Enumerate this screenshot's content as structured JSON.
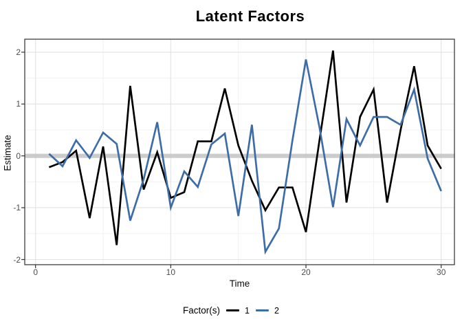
{
  "title": "Latent Factors",
  "axes": {
    "x_label": "Time",
    "y_label": "Estimate",
    "x_ticks": [
      {
        "label": "0",
        "value": 0
      },
      {
        "label": "10",
        "value": 10
      },
      {
        "label": "20",
        "value": 20
      },
      {
        "label": "30",
        "value": 30
      }
    ],
    "y_ticks": [
      {
        "label": "2",
        "value": 2
      },
      {
        "label": "1",
        "value": 1
      },
      {
        "label": "0",
        "value": 0
      },
      {
        "label": "-1",
        "value": -1
      },
      {
        "label": "-2",
        "value": -2
      }
    ],
    "x_minor": [
      5,
      15,
      25
    ],
    "y_minor": [
      1.5,
      0.5,
      -0.5,
      -1.5
    ]
  },
  "legend": {
    "title": "Factor(s)",
    "entries": [
      {
        "label": "1",
        "color": "#000000"
      },
      {
        "label": "2",
        "color": "#3D6DA6"
      }
    ]
  },
  "colors": {
    "series1": "#000000",
    "series2": "#3D6DA6",
    "zero_band": "#c4c4c4",
    "grid_major": "#e2e2e2",
    "grid_minor": "#f0f0f0",
    "panel_border": "#2d2d2d",
    "tick_mark": "#333333"
  },
  "chart_data": {
    "type": "line",
    "title": "Latent Factors",
    "xlabel": "Time",
    "ylabel": "Estimate",
    "xlim": [
      -0.8,
      31
    ],
    "ylim": [
      -2.1,
      2.25
    ],
    "grid": true,
    "legend_position": "bottom",
    "annotations": [
      {
        "type": "hline_band",
        "y": 0,
        "color": "#c4c4c4",
        "note": "thick gray horizontal reference band at y=0"
      }
    ],
    "x": [
      1,
      2,
      3,
      4,
      5,
      6,
      7,
      8,
      9,
      10,
      11,
      12,
      13,
      14,
      15,
      16,
      17,
      18,
      19,
      20,
      21,
      22,
      23,
      24,
      25,
      26,
      27,
      28,
      29,
      30
    ],
    "series": [
      {
        "name": "1",
        "color": "#000000",
        "values": [
          -0.22,
          -0.12,
          0.1,
          -1.2,
          0.18,
          -1.72,
          1.35,
          -0.65,
          0.07,
          -0.81,
          -0.7,
          0.28,
          0.28,
          1.3,
          0.2,
          -0.48,
          -1.05,
          -0.61,
          -0.61,
          -1.47,
          0.3,
          2.03,
          -0.9,
          0.75,
          1.28,
          -0.9,
          0.5,
          1.73,
          0.2,
          -0.25
        ]
      },
      {
        "name": "2",
        "color": "#3D6DA6",
        "values": [
          0.04,
          -0.2,
          0.3,
          -0.04,
          0.45,
          0.23,
          -1.25,
          -0.45,
          0.65,
          -1.0,
          -0.3,
          -0.6,
          0.22,
          0.43,
          -1.16,
          0.6,
          -1.85,
          -1.4,
          0.3,
          1.86,
          0.55,
          -0.99,
          0.71,
          0.2,
          0.75,
          0.75,
          0.6,
          1.28,
          -0.05,
          -0.68
        ]
      }
    ]
  }
}
